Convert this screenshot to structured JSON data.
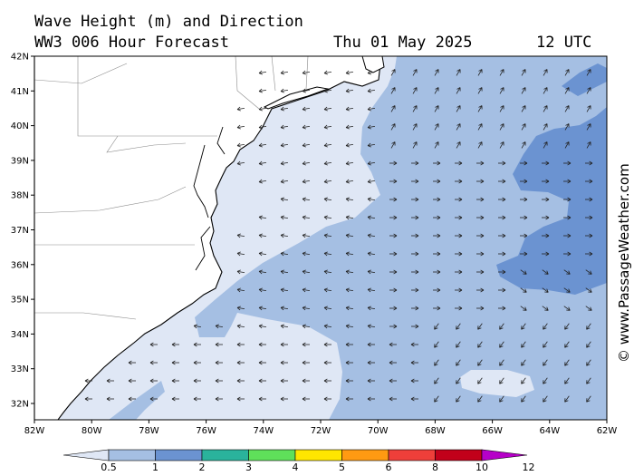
{
  "title": {
    "line1": "Wave Height (m) and Direction",
    "line2": "WW3 006 Hour Forecast",
    "date": "Thu 01 May 2025",
    "time": "12 UTC"
  },
  "credit": "© www.PassageWeather.com",
  "lat_labels": [
    "42N",
    "41N",
    "40N",
    "39N",
    "38N",
    "37N",
    "36N",
    "35N",
    "34N",
    "33N",
    "32N"
  ],
  "lon_labels": [
    "82W",
    "80W",
    "78W",
    "76W",
    "74W",
    "72W",
    "70W",
    "68W",
    "66W",
    "64W",
    "62W"
  ],
  "colorbar": {
    "labels": [
      "0.5",
      "1",
      "2",
      "3",
      "4",
      "5",
      "6",
      "8",
      "10",
      "12"
    ],
    "colors": [
      "#dfe7f5",
      "#a5bfe3",
      "#6b93d1",
      "#2ab39c",
      "#5fe05a",
      "#ffe600",
      "#ff9a12",
      "#ee3f3a",
      "#c2001a",
      "#b600c8"
    ]
  },
  "map_colors": {
    "land": "#ffffff",
    "band_low": "#dfe7f5",
    "band_mid": "#a5bfe3",
    "band_high": "#6b93d1",
    "arrow": "#222222"
  }
}
